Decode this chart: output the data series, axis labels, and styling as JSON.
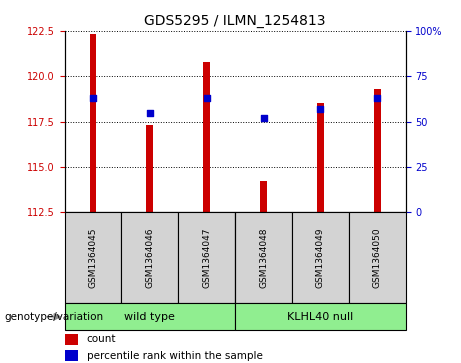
{
  "title": "GDS5295 / ILMN_1254813",
  "samples": [
    "GSM1364045",
    "GSM1364046",
    "GSM1364047",
    "GSM1364048",
    "GSM1364049",
    "GSM1364050"
  ],
  "count_values": [
    122.3,
    117.3,
    120.8,
    114.2,
    118.5,
    119.3
  ],
  "percentile_values": [
    63,
    55,
    63,
    52,
    57,
    63
  ],
  "ylim_left": [
    112.5,
    122.5
  ],
  "ylim_right": [
    0,
    100
  ],
  "yticks_left": [
    112.5,
    115.0,
    117.5,
    120.0,
    122.5
  ],
  "yticks_right": [
    0,
    25,
    50,
    75,
    100
  ],
  "ytick_labels_right": [
    "0",
    "25",
    "50",
    "75",
    "100%"
  ],
  "bar_color": "#cc0000",
  "dot_color": "#0000cc",
  "bar_width": 0.12,
  "groups": [
    {
      "label": "wild type",
      "indices": [
        0,
        1,
        2
      ],
      "color": "#90ee90"
    },
    {
      "label": "KLHL40 null",
      "indices": [
        3,
        4,
        5
      ],
      "color": "#90ee90"
    }
  ],
  "group_label": "genotype/variation",
  "legend_count_label": "count",
  "legend_pct_label": "percentile rank within the sample",
  "bg_color": "#ffffff",
  "tick_label_color_left": "#cc0000",
  "tick_label_color_right": "#0000cc",
  "sample_box_color": "#d3d3d3"
}
